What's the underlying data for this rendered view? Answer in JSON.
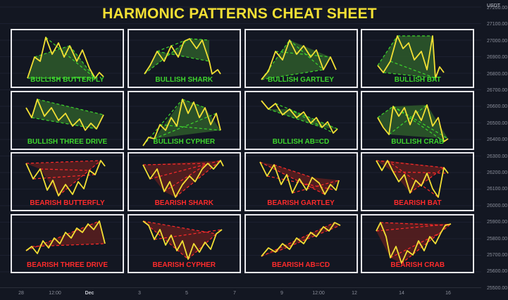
{
  "title": "HARMONIC PATTERNS CHEAT SHEET",
  "colors": {
    "background": "#131722",
    "title": "#f3e034",
    "price_line": "#f3e034",
    "bullish": "#3ed62d",
    "bearish": "#ff2b2b",
    "bullish_fill": "#2e5a2a",
    "bearish_fill": "#5a1f1f",
    "cell_border": "#e9e9ee"
  },
  "patterns": [
    {
      "label": "BULLISH BUTTERFLY",
      "type": "bullish"
    },
    {
      "label": "BULLISH SHARK",
      "type": "bullish"
    },
    {
      "label": "BULLISH GARTLEY",
      "type": "bullish"
    },
    {
      "label": "BULLISH BAT",
      "type": "bullish"
    },
    {
      "label": "BULLISH THREE DRIVE",
      "type": "bullish"
    },
    {
      "label": "BULLISH CYPHER",
      "type": "bullish"
    },
    {
      "label": "BULLISH AB=CD",
      "type": "bullish"
    },
    {
      "label": "BULLISH CRAB",
      "type": "bullish"
    },
    {
      "label": "BEARISH BUTTERFLY",
      "type": "bearish"
    },
    {
      "label": "BEARISH SHARK",
      "type": "bearish"
    },
    {
      "label": "BEARISH GARTLEY",
      "type": "bearish"
    },
    {
      "label": "BEARISH BAT",
      "type": "bearish"
    },
    {
      "label": "BEARISH THREE DRIVE",
      "type": "bearish"
    },
    {
      "label": "BEARISH CYPHER",
      "type": "bearish"
    },
    {
      "label": "BEARISH AB=CD",
      "type": "bearish"
    },
    {
      "label": "BEARISH CRAB",
      "type": "bearish"
    }
  ],
  "y_axis": {
    "unit": "USDT",
    "ticks": [
      "27200.00",
      "27100.00",
      "27000.00",
      "26900.00",
      "26800.00",
      "26700.00",
      "26600.00",
      "26500.00",
      "26400.00",
      "26300.00",
      "26200.00",
      "26100.00",
      "26000.00",
      "25900.00",
      "25800.00",
      "25700.00",
      "25600.00",
      "25500.00"
    ]
  },
  "x_axis": {
    "ticks": [
      {
        "label": "28",
        "bold": false
      },
      {
        "label": "12:00",
        "bold": false
      },
      {
        "label": "Dec",
        "bold": true
      },
      {
        "label": "3",
        "bold": false
      },
      {
        "label": "5",
        "bold": false
      },
      {
        "label": "7",
        "bold": false
      },
      {
        "label": "9",
        "bold": false
      },
      {
        "label": "12:00",
        "bold": false
      },
      {
        "label": "12",
        "bold": false
      },
      {
        "label": "14",
        "bold": false
      },
      {
        "label": "16",
        "bold": false
      }
    ]
  }
}
